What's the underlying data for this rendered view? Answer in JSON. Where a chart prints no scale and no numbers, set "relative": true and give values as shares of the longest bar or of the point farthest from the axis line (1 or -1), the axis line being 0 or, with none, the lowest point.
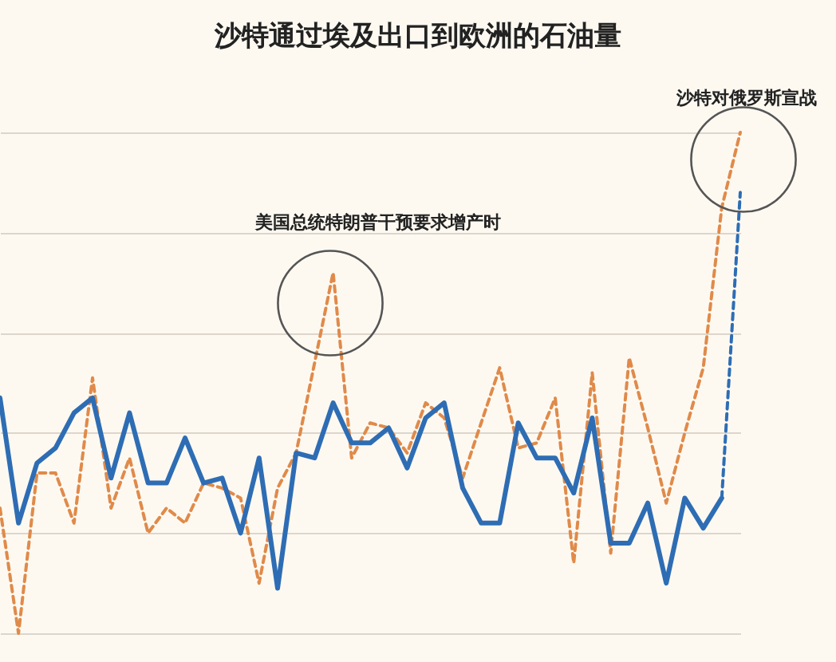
{
  "chart_data": {
    "type": "line",
    "title": "沙特通过埃及出口到欧洲的石油量",
    "relative": true,
    "grid": "y",
    "categories": [
      null,
      null,
      null,
      null,
      null,
      null,
      null,
      null,
      null,
      null,
      null,
      null,
      null,
      null,
      null,
      null,
      null,
      null,
      null,
      null,
      null,
      null,
      null,
      null,
      null,
      null,
      null,
      null,
      null,
      null,
      null,
      null,
      null,
      null,
      null,
      null,
      null,
      null,
      null,
      null,
      null
    ],
    "series": [
      {
        "color": "#e08a4a",
        "line_style": "dashed",
        "values": [
          0.25,
          0,
          0.32,
          0.32,
          0.22,
          0.51,
          0.25,
          0.35,
          0.2,
          0.25,
          0.22,
          0.3,
          0.29,
          0.27,
          0.1,
          0.29,
          0.36,
          0.54,
          0.72,
          0.35,
          0.42,
          0.41,
          0.36,
          0.46,
          0.43,
          0.31,
          0.42,
          0.53,
          0.37,
          0.38,
          0.47,
          0.14,
          0.52,
          0.16,
          0.55,
          0.41,
          0.26,
          0.4,
          0.53,
          0.85,
          1
        ]
      },
      {
        "color": "#2e6db4",
        "line_style": "solid",
        "values": [
          0.47,
          0.22,
          0.34,
          0.37,
          0.44,
          0.47,
          0.31,
          0.44,
          0.3,
          0.3,
          0.39,
          0.3,
          0.31,
          0.2,
          0.35,
          0.09,
          0.36,
          0.35,
          0.46,
          0.38,
          0.38,
          0.41,
          0.33,
          0.43,
          0.46,
          0.29,
          0.22,
          0.22,
          0.42,
          0.35,
          0.35,
          0.28,
          0.43,
          0.18,
          0.18,
          0.26,
          0.1,
          0.27,
          0.21,
          0.27,
          null
        ]
      },
      {
        "color": "#2e6db4",
        "line_style": "dashed",
        "values": [
          null,
          null,
          null,
          null,
          null,
          null,
          null,
          null,
          null,
          null,
          null,
          null,
          null,
          null,
          null,
          null,
          null,
          null,
          null,
          null,
          null,
          null,
          null,
          null,
          null,
          null,
          null,
          null,
          null,
          null,
          null,
          null,
          null,
          null,
          null,
          null,
          null,
          null,
          null,
          0.27,
          0.88
        ]
      }
    ],
    "annotations": [
      "美国总统特朗普干预要求增产时",
      "沙特对俄罗斯宣战"
    ]
  }
}
